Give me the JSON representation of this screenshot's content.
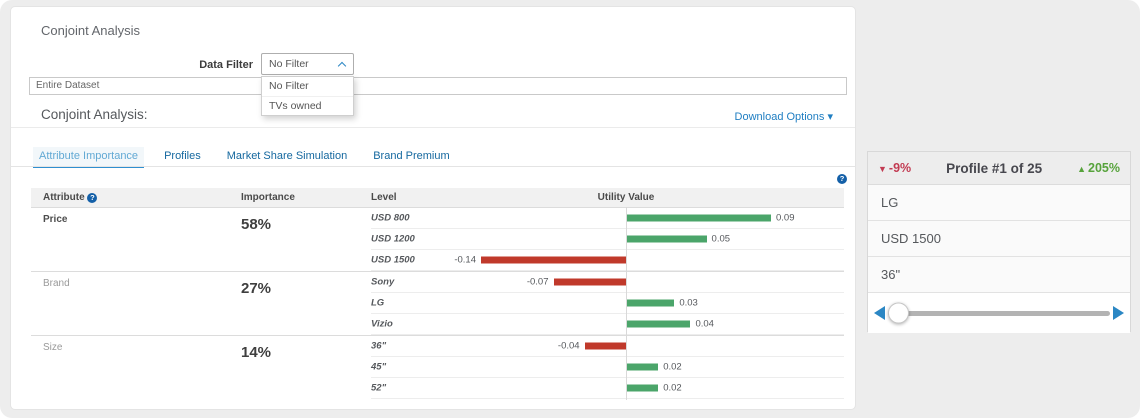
{
  "page": {
    "title": "Conjoint Analysis"
  },
  "filter": {
    "label": "Data Filter",
    "selected": "No Filter",
    "options": [
      "No Filter",
      "TVs owned"
    ]
  },
  "dataset_field": {
    "value": "Entire Dataset"
  },
  "section": {
    "title": "Conjoint Analysis:",
    "download_label": "Download Options",
    "download_chevron": "▾"
  },
  "tabs": [
    {
      "label": "Attribute Importance",
      "active": true
    },
    {
      "label": "Profiles",
      "active": false
    },
    {
      "label": "Market Share Simulation",
      "active": false
    },
    {
      "label": "Brand Premium",
      "active": false
    }
  ],
  "table": {
    "headers": {
      "attribute": "Attribute",
      "importance": "Importance",
      "level": "Level",
      "utility": "Utility Value"
    },
    "help_glyph": "?"
  },
  "chart_data": {
    "type": "bar",
    "title": "Conjoint Analysis: Attribute Importance",
    "orientation": "horizontal-diverging",
    "colors": {
      "positive": "#4ba56a",
      "negative": "#c0392b"
    },
    "max_positive": 0.09,
    "max_negative": -0.14,
    "groups": [
      {
        "attribute": "Price",
        "importance": "58%",
        "bold": true,
        "levels": [
          {
            "label": "USD 800",
            "value": 0.09,
            "value_label": "0.09"
          },
          {
            "label": "USD 1200",
            "value": 0.05,
            "value_label": "0.05"
          },
          {
            "label": "USD 1500",
            "value": -0.14,
            "value_label": "-0.14"
          }
        ]
      },
      {
        "attribute": "Brand",
        "importance": "27%",
        "bold": false,
        "levels": [
          {
            "label": "Sony",
            "value": -0.07,
            "value_label": "-0.07"
          },
          {
            "label": "LG",
            "value": 0.03,
            "value_label": "0.03"
          },
          {
            "label": "Vizio",
            "value": 0.04,
            "value_label": "0.04"
          }
        ]
      },
      {
        "attribute": "Size",
        "importance": "14%",
        "bold": false,
        "levels": [
          {
            "label": "36\"",
            "value": -0.04,
            "value_label": "-0.04"
          },
          {
            "label": "45\"",
            "value": 0.02,
            "value_label": "0.02"
          },
          {
            "label": "52\"",
            "value": 0.02,
            "value_label": "0.02"
          }
        ]
      }
    ]
  },
  "profile_panel": {
    "decrease": "-9%",
    "decrease_icon": "▼",
    "title": "Profile #1 of 25",
    "increase": "205%",
    "increase_icon": "▲",
    "rows": [
      "LG",
      "USD 1500",
      "36\""
    ]
  },
  "colors": {
    "accent_blue": "#2b87c4",
    "link_blue": "#1f7ec2",
    "panel_red": "#c23b52",
    "panel_green": "#57a33c"
  }
}
